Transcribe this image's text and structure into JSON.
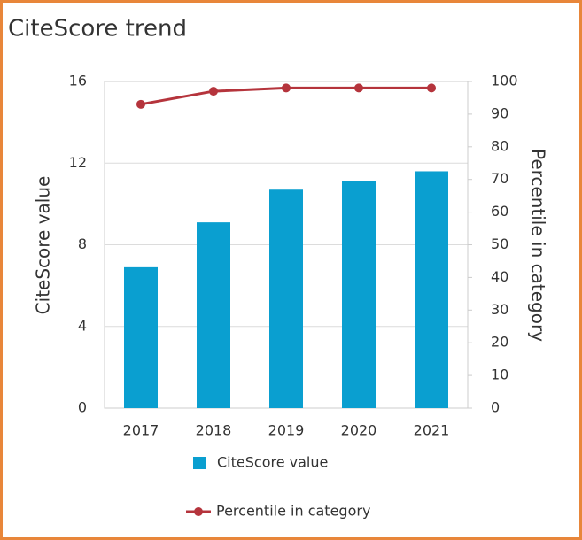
{
  "chart_data": {
    "type": "bar",
    "title": "CiteScore trend",
    "categories": [
      "2017",
      "2018",
      "2019",
      "2020",
      "2021"
    ],
    "series": [
      {
        "name": "CiteScore value",
        "color": "#0a9fd0",
        "values": [
          6.9,
          9.1,
          10.7,
          11.1,
          11.6
        ]
      },
      {
        "name": "Percentile in category",
        "color": "#b5343c",
        "type": "line",
        "axis": "y2",
        "values": [
          93,
          97,
          98,
          98,
          98
        ]
      }
    ],
    "y_label": "CiteScore value",
    "y2_label": "Percentile in category",
    "ylim": [
      0,
      16
    ],
    "yticks": [
      0,
      4,
      8,
      12,
      16
    ],
    "y2lim": [
      0,
      100
    ],
    "y2ticks": [
      0,
      10,
      20,
      30,
      40,
      50,
      60,
      70,
      80,
      90,
      100
    ],
    "grid": true
  }
}
